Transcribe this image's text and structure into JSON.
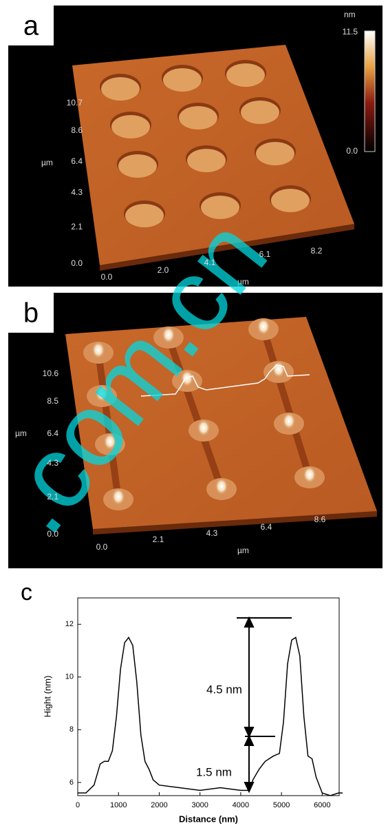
{
  "panel_a": {
    "label": "a",
    "y_ticks": [
      "10.7",
      "8.6",
      "6.4",
      "4.3",
      "2.1",
      "0.0"
    ],
    "y_unit": "µm",
    "x_ticks": [
      "0.0",
      "2.0",
      "4.1",
      "6.1",
      "8.2"
    ],
    "x_unit": "µm",
    "colorbar_unit": "nm",
    "colorbar_max": "11.5",
    "colorbar_min": "0.0"
  },
  "panel_b": {
    "label": "b",
    "y_ticks": [
      "10.6",
      "8.5",
      "6.4",
      "4.3",
      "2.1",
      "0.0"
    ],
    "y_unit": "µm",
    "x_ticks": [
      "0.0",
      "2.1",
      "4.3",
      "6.4",
      "8.6"
    ],
    "x_unit": "µm"
  },
  "watermark": ".com.cn",
  "chart_data": {
    "type": "line",
    "label": "c",
    "xlabel": "Distance (nm)",
    "ylabel": "Hight (nm)",
    "color": "#000000",
    "x": [
      0,
      200,
      400,
      550,
      650,
      750,
      850,
      950,
      1050,
      1150,
      1250,
      1350,
      1450,
      1550,
      1650,
      1750,
      1850,
      2000,
      2500,
      3000,
      3500,
      4000,
      4200,
      4300,
      4450,
      4600,
      4800,
      4950,
      5050,
      5150,
      5250,
      5350,
      5450,
      5550,
      5650,
      5750,
      5850,
      6000,
      6200,
      6400,
      6500
    ],
    "values": [
      5.6,
      5.6,
      5.9,
      6.7,
      6.8,
      6.8,
      7.2,
      8.5,
      10.3,
      11.3,
      11.5,
      11.2,
      9.8,
      7.8,
      6.8,
      6.5,
      6.1,
      5.9,
      5.8,
      5.7,
      5.8,
      5.7,
      5.7,
      6.1,
      6.5,
      6.8,
      7.0,
      7.1,
      8.3,
      10.5,
      11.4,
      11.5,
      10.8,
      8.5,
      7.0,
      6.9,
      6.2,
      5.6,
      5.5,
      5.6,
      5.6
    ],
    "xlim": [
      0,
      6500
    ],
    "ylim": [
      5.5,
      13
    ],
    "xticks": [
      0,
      1000,
      2000,
      3000,
      4000,
      5000,
      6000
    ],
    "yticks": [
      6,
      8,
      10,
      12
    ],
    "annotations": [
      "4.5 nm",
      "1.5 nm"
    ]
  }
}
